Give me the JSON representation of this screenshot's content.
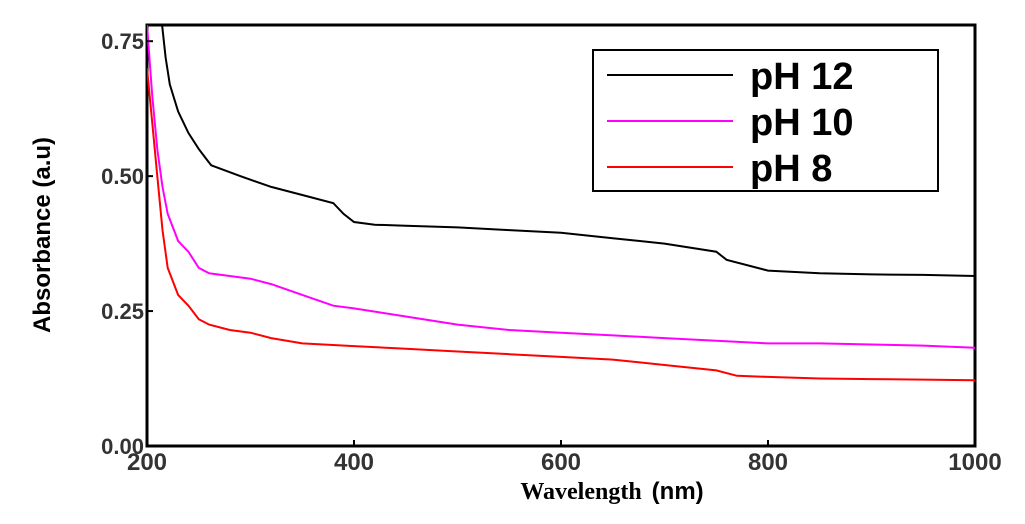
{
  "chart_data": {
    "type": "line",
    "title": "",
    "xlabel_word": "Wavelength",
    "xlabel_unit": "(nm)",
    "ylabel": "Absorbance (a.u)",
    "xlim": [
      200,
      1000
    ],
    "ylim": [
      0,
      0.78
    ],
    "xticks": [
      "200",
      "400",
      "600",
      "800",
      "1000"
    ],
    "xtick_values": [
      200,
      400,
      600,
      800,
      1000
    ],
    "yticks": [
      "0.00",
      "0.25",
      "0.50",
      "0.75"
    ],
    "ytick_values": [
      0,
      0.25,
      0.5,
      0.75
    ],
    "grid": false,
    "legend_position": "top-right",
    "series": [
      {
        "name": "pH 12",
        "color": "#000000",
        "x": [
          214,
          218,
          222,
          230,
          240,
          250,
          258,
          262,
          290,
          320,
          350,
          380,
          390,
          400,
          420,
          450,
          500,
          550,
          600,
          650,
          700,
          750,
          760,
          800,
          850,
          900,
          950,
          1000
        ],
        "y": [
          0.79,
          0.72,
          0.67,
          0.62,
          0.58,
          0.55,
          0.53,
          0.52,
          0.5,
          0.48,
          0.465,
          0.45,
          0.43,
          0.415,
          0.41,
          0.408,
          0.405,
          0.4,
          0.395,
          0.385,
          0.375,
          0.36,
          0.345,
          0.325,
          0.32,
          0.318,
          0.317,
          0.315
        ]
      },
      {
        "name": "pH 10",
        "color": "#ff00ff",
        "x": [
          200,
          205,
          210,
          215,
          220,
          230,
          240,
          250,
          260,
          280,
          300,
          320,
          350,
          380,
          400,
          450,
          500,
          550,
          600,
          650,
          700,
          750,
          800,
          850,
          900,
          950,
          1000
        ],
        "y": [
          0.78,
          0.65,
          0.55,
          0.48,
          0.43,
          0.38,
          0.36,
          0.33,
          0.32,
          0.315,
          0.31,
          0.3,
          0.28,
          0.26,
          0.255,
          0.24,
          0.225,
          0.215,
          0.21,
          0.205,
          0.2,
          0.195,
          0.19,
          0.19,
          0.188,
          0.186,
          0.182
        ]
      },
      {
        "name": "pH 8",
        "color": "#ff0000",
        "x": [
          200,
          205,
          210,
          215,
          220,
          230,
          240,
          250,
          260,
          280,
          300,
          320,
          350,
          400,
          450,
          500,
          550,
          600,
          650,
          700,
          750,
          770,
          800,
          850,
          900,
          950,
          1000
        ],
        "y": [
          0.7,
          0.6,
          0.5,
          0.4,
          0.33,
          0.28,
          0.26,
          0.235,
          0.225,
          0.215,
          0.21,
          0.2,
          0.19,
          0.185,
          0.18,
          0.175,
          0.17,
          0.165,
          0.16,
          0.15,
          0.14,
          0.13,
          0.128,
          0.125,
          0.124,
          0.123,
          0.122
        ]
      }
    ]
  }
}
